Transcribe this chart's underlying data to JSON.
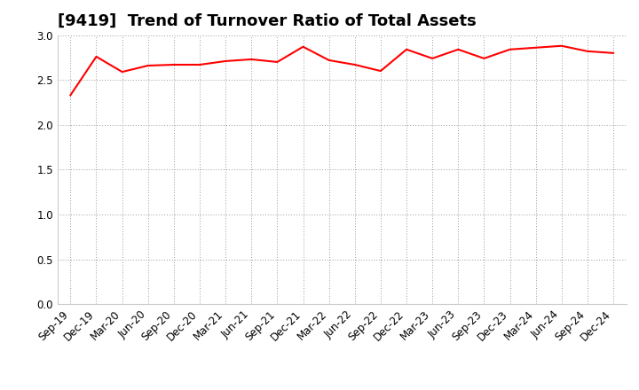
{
  "title": "[9419]  Trend of Turnover Ratio of Total Assets",
  "x_labels": [
    "Sep-19",
    "Dec-19",
    "Mar-20",
    "Jun-20",
    "Sep-20",
    "Dec-20",
    "Mar-21",
    "Jun-21",
    "Sep-21",
    "Dec-21",
    "Mar-22",
    "Jun-22",
    "Sep-22",
    "Dec-22",
    "Mar-23",
    "Jun-23",
    "Sep-23",
    "Dec-23",
    "Mar-24",
    "Jun-24",
    "Sep-24",
    "Dec-24"
  ],
  "y_values": [
    2.33,
    2.76,
    2.59,
    2.66,
    2.67,
    2.67,
    2.71,
    2.73,
    2.7,
    2.87,
    2.72,
    2.67,
    2.6,
    2.84,
    2.74,
    2.84,
    2.74,
    2.84,
    2.86,
    2.88,
    2.82,
    2.8
  ],
  "ylim": [
    0.0,
    3.0
  ],
  "yticks": [
    0.0,
    0.5,
    1.0,
    1.5,
    2.0,
    2.5,
    3.0
  ],
  "line_color": "#ff0000",
  "line_width": 1.5,
  "background_color": "#ffffff",
  "plot_bg_color": "#ffffff",
  "grid_color": "#999999",
  "title_fontsize": 13,
  "tick_fontsize": 8.5
}
